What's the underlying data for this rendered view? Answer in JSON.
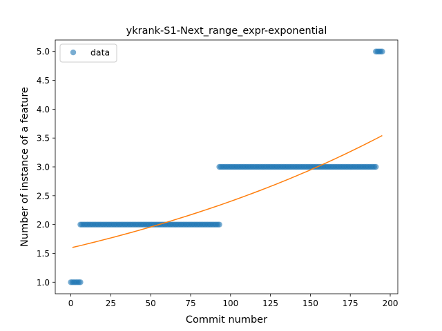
{
  "chart_data": {
    "type": "scatter",
    "title": "ykrank-S1-Next_range_expr-exponential",
    "xlabel": "Commit number",
    "ylabel": "Number of instance of a feature",
    "xlim": [
      -9.75,
      204.75
    ],
    "ylim": [
      0.8,
      5.2
    ],
    "x_ticks": [
      0,
      25,
      50,
      75,
      100,
      125,
      150,
      175,
      200
    ],
    "y_ticks": [
      1.0,
      1.5,
      2.0,
      2.5,
      3.0,
      3.5,
      4.0,
      4.5,
      5.0
    ],
    "x_tick_labels": [
      "0",
      "25",
      "50",
      "75",
      "100",
      "125",
      "150",
      "175",
      "200"
    ],
    "y_tick_labels": [
      "1.0",
      "1.5",
      "2.0",
      "2.5",
      "3.0",
      "3.5",
      "4.0",
      "4.5",
      "5.0"
    ],
    "grid": false,
    "legend": {
      "position": "upper-left",
      "entries": [
        "data"
      ]
    },
    "colors": {
      "data": "#1f77b4",
      "fit": "#ff7f0e"
    },
    "series": [
      {
        "name": "data",
        "kind": "scatter",
        "segments": [
          {
            "x_start": 0,
            "x_end": 6,
            "y": 1.0
          },
          {
            "x_start": 6,
            "x_end": 93,
            "y": 2.0
          },
          {
            "x_start": 93,
            "x_end": 191,
            "y": 3.0
          },
          {
            "x_start": 191,
            "x_end": 195,
            "y": 5.0
          }
        ]
      },
      {
        "kind": "line",
        "x": [
          1,
          195
        ],
        "fit": {
          "a": 1.596,
          "b": 0.00409
        }
      }
    ]
  }
}
